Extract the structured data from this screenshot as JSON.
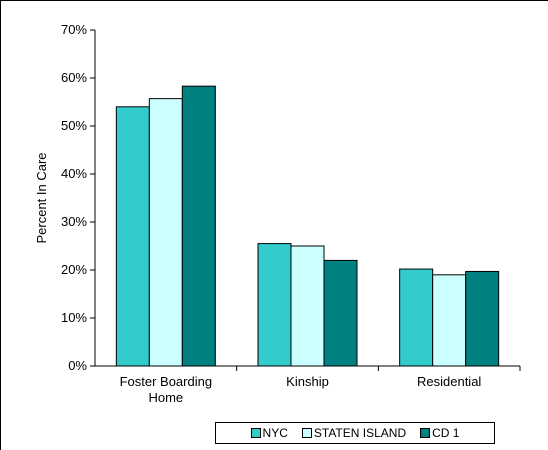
{
  "chart_data": {
    "type": "bar",
    "categories": [
      "Foster Boarding Home",
      "Kinship",
      "Residential"
    ],
    "category_lines": [
      [
        "Foster Boarding",
        "Home"
      ],
      [
        "Kinship"
      ],
      [
        "Residential"
      ]
    ],
    "series": [
      {
        "name": "NYC",
        "values": [
          54,
          25.5,
          20.2
        ],
        "color": "#33CCCC"
      },
      {
        "name": "STATEN ISLAND",
        "values": [
          55.7,
          25,
          19
        ],
        "color": "#CCFFFF"
      },
      {
        "name": "CD 1",
        "values": [
          58.3,
          22,
          19.7
        ],
        "color": "#008080"
      }
    ],
    "ylabel": "Percent In Care",
    "ylim": [
      0,
      70
    ],
    "yticks": [
      "0%",
      "10%",
      "20%",
      "30%",
      "40%",
      "50%",
      "60%",
      "70%"
    ],
    "grid": false,
    "legend_position": "bottom"
  }
}
